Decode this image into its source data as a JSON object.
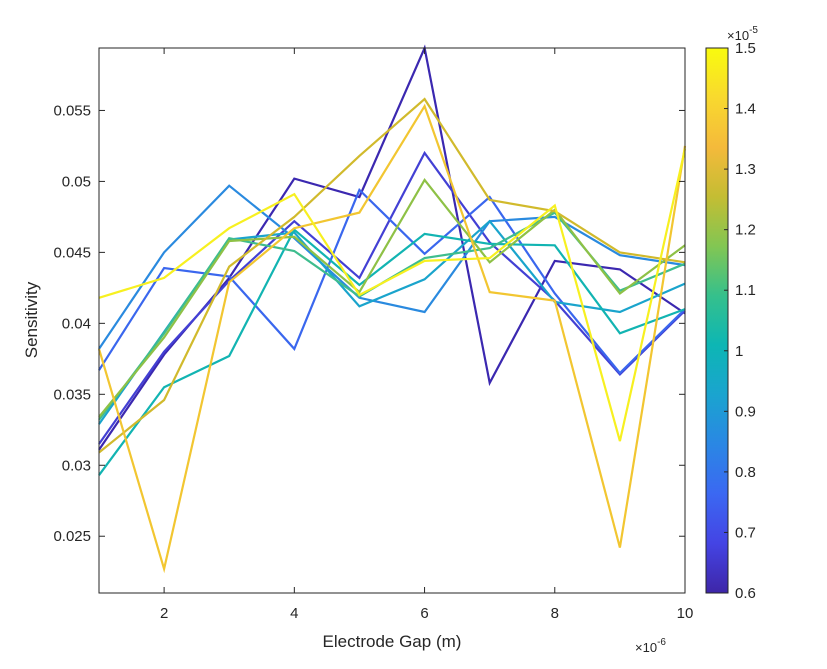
{
  "chart_data": {
    "type": "line",
    "xlabel": "Electrode Gap (m)",
    "ylabel": "Sensitivity",
    "x_exponent_label": "×10^-6",
    "xlim": [
      1,
      10
    ],
    "ylim": [
      0.021,
      0.0594
    ],
    "xticks": [
      2,
      4,
      6,
      8,
      10
    ],
    "yticks": [
      0.025,
      0.03,
      0.035,
      0.04,
      0.045,
      0.05,
      0.055
    ],
    "ytick_labels": [
      "0.025",
      "0.03",
      "0.035",
      "0.04",
      "0.045",
      "0.05",
      "0.055"
    ],
    "grid": false,
    "x": [
      1,
      2,
      3,
      4,
      5,
      6,
      7,
      8,
      9,
      10
    ],
    "series": [
      {
        "color": "#3b28b0",
        "values": [
          0.0311,
          0.0378,
          0.0432,
          0.0502,
          0.0489,
          0.0594,
          0.0358,
          0.0444,
          0.0438,
          0.0407
        ]
      },
      {
        "color": "#4340d4",
        "values": [
          0.0315,
          0.038,
          0.043,
          0.0472,
          0.0432,
          0.052,
          0.0457,
          0.0416,
          0.0364,
          0.0409
        ]
      },
      {
        "color": "#3a67ee",
        "values": [
          0.0367,
          0.0439,
          0.0433,
          0.0382,
          0.0494,
          0.0449,
          0.0489,
          0.0421,
          0.0365,
          0.041
        ]
      },
      {
        "color": "#2a8adf",
        "values": [
          0.0382,
          0.045,
          0.0497,
          0.046,
          0.0418,
          0.0408,
          0.0472,
          0.0475,
          0.0448,
          0.0441
        ]
      },
      {
        "color": "#1aa4cc",
        "values": [
          0.0329,
          0.0394,
          0.0459,
          0.0464,
          0.0412,
          0.0431,
          0.0472,
          0.0415,
          0.0408,
          0.0428
        ]
      },
      {
        "color": "#12b4b2",
        "values": [
          0.0293,
          0.0355,
          0.0377,
          0.0466,
          0.0427,
          0.0463,
          0.0456,
          0.0455,
          0.0393,
          0.041
        ]
      },
      {
        "color": "#3ebd8e",
        "values": [
          0.0332,
          0.0393,
          0.046,
          0.0451,
          0.0419,
          0.0446,
          0.0453,
          0.0478,
          0.0423,
          0.0442
        ]
      },
      {
        "color": "#8ec146",
        "values": [
          0.0334,
          0.039,
          0.0458,
          0.0461,
          0.0422,
          0.0501,
          0.0443,
          0.048,
          0.0421,
          0.0455
        ]
      },
      {
        "color": "#d1ba2c",
        "values": [
          0.0309,
          0.0346,
          0.044,
          0.0475,
          0.0518,
          0.0558,
          0.0487,
          0.0479,
          0.045,
          0.0443
        ]
      },
      {
        "color": "#f2c631",
        "values": [
          0.0382,
          0.0227,
          0.0429,
          0.0467,
          0.0478,
          0.0553,
          0.0422,
          0.0416,
          0.0242,
          0.0525
        ]
      },
      {
        "color": "#f7f020",
        "values": [
          0.0418,
          0.0432,
          0.0467,
          0.0491,
          0.042,
          0.0444,
          0.0446,
          0.0483,
          0.0317,
          0.0523
        ]
      }
    ],
    "colorbar": {
      "range": [
        0.6,
        1.5
      ],
      "ticks": [
        0.6,
        0.7,
        0.8,
        0.9,
        1,
        1.1,
        1.2,
        1.3,
        1.4,
        1.5
      ],
      "tick_labels": [
        "0.6",
        "0.7",
        "0.8",
        "0.9",
        "1",
        "1.1",
        "1.2",
        "1.3",
        "1.4",
        "1.5"
      ],
      "exponent_label": "×10^-5",
      "colormap": "parula",
      "stops": [
        "#3e26a8",
        "#4444e4",
        "#3b68f2",
        "#2a87e4",
        "#1aa4cf",
        "#0db6b4",
        "#35c08c",
        "#82c653",
        "#c4bd33",
        "#f4ba3b",
        "#f9d92e",
        "#f9fb0e"
      ]
    }
  }
}
